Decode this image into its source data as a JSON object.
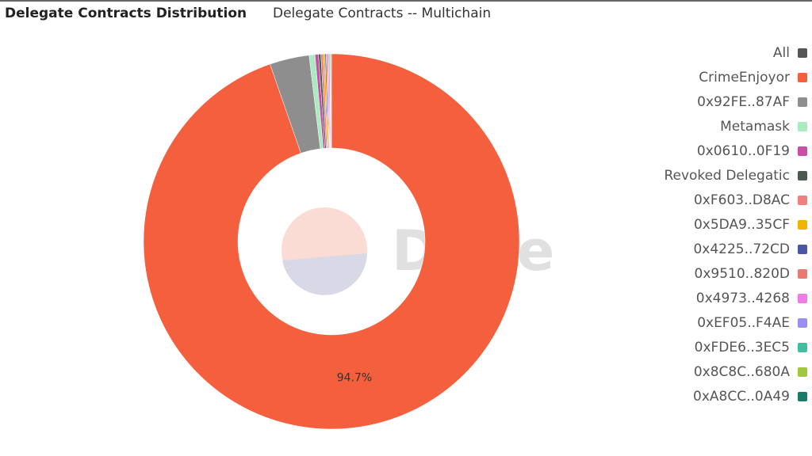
{
  "chart_data": {
    "type": "donut",
    "title": "Delegate Contracts Distribution",
    "subtitle": "Delegate Contracts -- Multichain",
    "watermark": "Dune",
    "legend_toggle": {
      "label": "All",
      "color": "#555555"
    },
    "categories": [
      "CrimeEnjoyor",
      "0x92FE..87AF",
      "Metamask",
      "0x0610..0F19",
      "Revoked Delegatic",
      "0xF603..D8AC",
      "0x5DA9..35CF",
      "0x4225..72CD",
      "0x9510..820D",
      "0x4973..4268",
      "0xEF05..F4AE",
      "0xFDE6..3EC5",
      "0x8C8C..680A",
      "0xA8CC..0A49"
    ],
    "values": [
      94.7,
      3.4,
      0.5,
      0.3,
      0.2,
      0.2,
      0.15,
      0.1,
      0.1,
      0.1,
      0.1,
      0.05,
      0.05,
      0.05
    ],
    "value_labels": [
      "94.7%",
      null,
      null,
      null,
      null,
      null,
      null,
      null,
      null,
      null,
      null,
      null,
      null,
      null
    ],
    "colors": [
      "#f4603e",
      "#8e8e8e",
      "#a8ebbf",
      "#c84fa8",
      "#4a5a50",
      "#f08080",
      "#f0b400",
      "#4a55a8",
      "#e87a70",
      "#f07ae8",
      "#9a8ef0",
      "#3ec0a0",
      "#a0c83c",
      "#1a7a68"
    ]
  }
}
